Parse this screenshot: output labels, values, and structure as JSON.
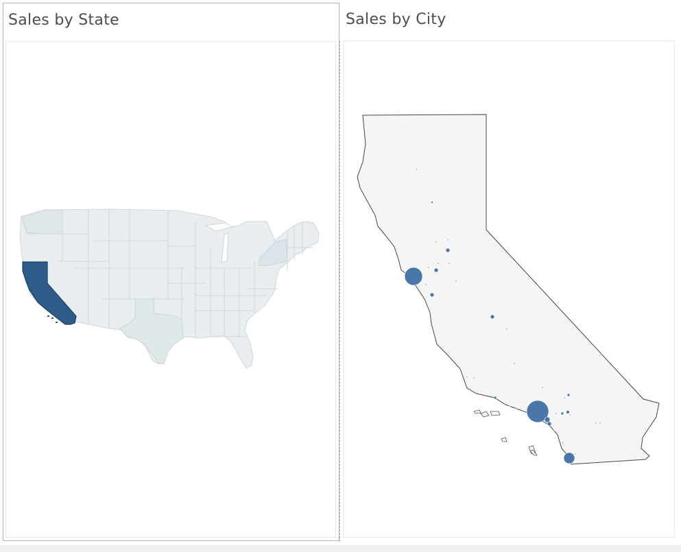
{
  "dashboard": {
    "left_sheet": {
      "title": "Sales by State"
    },
    "right_sheet": {
      "title": "Sales by City"
    }
  },
  "colors": {
    "highlight_state": "#2d5b8a",
    "light_state": "#e6eced",
    "mid_state": "#d7e1e6",
    "state_border": "#cdd3d6",
    "ca_fill": "#f5f5f5",
    "ca_outline": "#444444",
    "city_dot": "#4a76a8"
  }
}
